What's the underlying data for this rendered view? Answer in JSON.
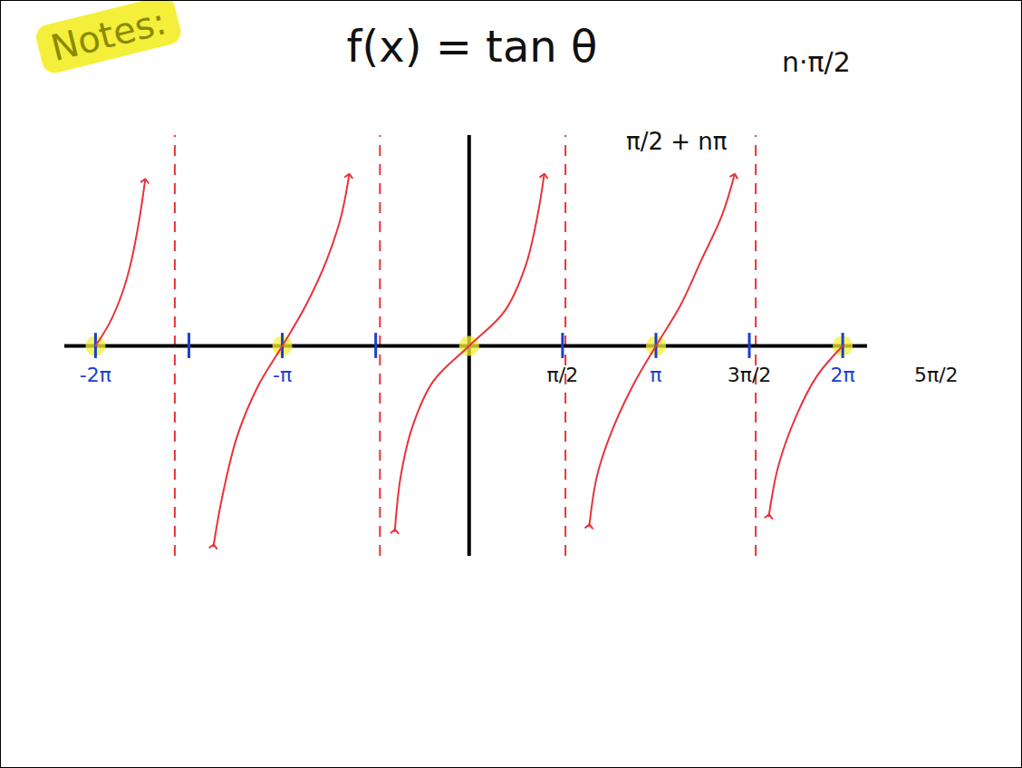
{
  "chart_data": {
    "type": "line",
    "title": "f(x) = tan θ",
    "annotations": [
      {
        "text": "Notes:"
      },
      {
        "text": "n·π/2"
      },
      {
        "text": "π/2 + nπ"
      },
      {
        "text": "5π/2",
        "x": 7.854
      }
    ],
    "x": [
      -6.283,
      -6.05,
      -5.85,
      -5.7,
      -5.55,
      -5.45,
      null,
      -4.3,
      -4.15,
      -3.9,
      -3.55,
      -3.142,
      -2.75,
      -2.4,
      -2.15,
      -2.02,
      null,
      -1.25,
      -1.15,
      -0.95,
      -0.6,
      0,
      0.6,
      0.95,
      1.15,
      1.26,
      null,
      2.02,
      2.15,
      2.4,
      2.75,
      3.142,
      3.55,
      3.9,
      4.25,
      4.46,
      null,
      5.04,
      5.2,
      5.5,
      5.85,
      6.283
    ],
    "values": [
      0,
      0.45,
      1.0,
      1.6,
      2.5,
      3.3,
      null,
      -4.0,
      -3.0,
      -1.8,
      -0.8,
      0,
      0.8,
      1.7,
      2.6,
      3.4,
      null,
      -3.7,
      -2.6,
      -1.6,
      -0.7,
      0,
      0.7,
      1.6,
      2.6,
      3.4,
      null,
      -3.6,
      -2.6,
      -1.7,
      -0.8,
      0,
      0.8,
      1.7,
      2.6,
      3.4,
      null,
      -3.4,
      -2.4,
      -1.4,
      -0.6,
      0
    ],
    "color": "#e8333a",
    "line_style": "solid",
    "marker": "arrow",
    "asymptotes": {
      "x": [
        -4.95,
        -1.5,
        1.62,
        4.82
      ],
      "color": "#e8333a",
      "line_style": "dashed"
    },
    "highlights": [
      -6.283,
      -3.142,
      0,
      3.142,
      6.283
    ],
    "xlim": [
      -6.8,
      6.7
    ],
    "ylim": [
      -4.2,
      4.2
    ],
    "xticks": [
      {
        "value": -6.283,
        "label": "-2π"
      },
      {
        "value": -4.712,
        "label": null
      },
      {
        "value": -3.142,
        "label": "-π"
      },
      {
        "value": -1.571,
        "label": null
      },
      {
        "value": 1.571,
        "label": "π/2"
      },
      {
        "value": 3.142,
        "label": "π"
      },
      {
        "value": 4.712,
        "label": "3π/2"
      },
      {
        "value": 6.283,
        "label": "2π"
      }
    ],
    "tick_labels": "x",
    "grid": false
  }
}
